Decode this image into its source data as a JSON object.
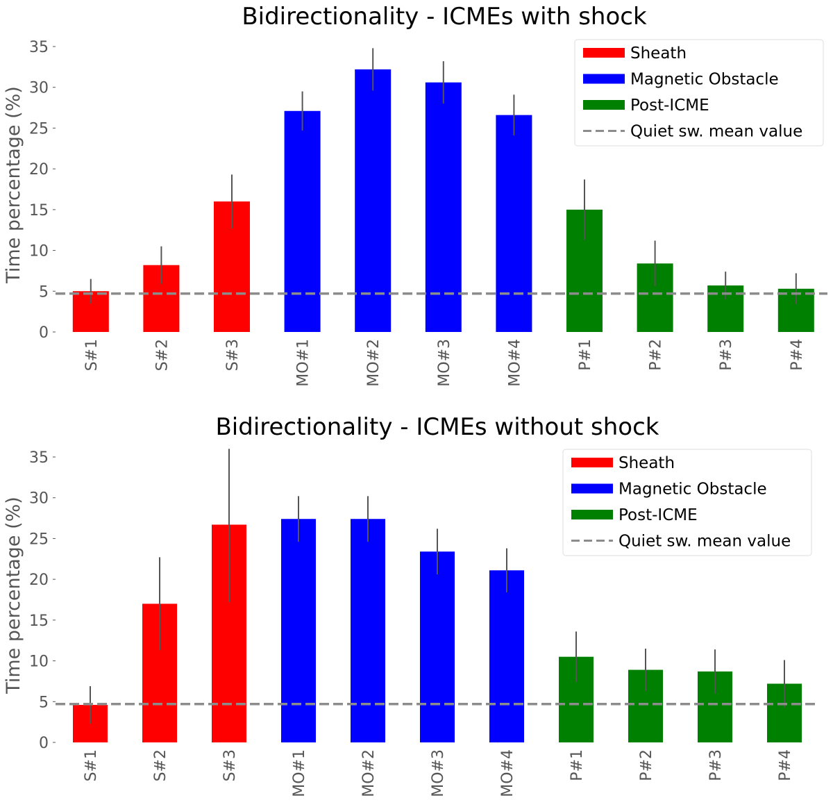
{
  "chart_data": [
    {
      "type": "bar",
      "title": "Bidirectionality - ICMEs with shock",
      "xlabel": "",
      "ylabel": "Time percentage (%)",
      "ylim": [
        0,
        35
      ],
      "yticks": [
        0,
        5,
        10,
        15,
        20,
        25,
        30,
        35
      ],
      "categories": [
        "S#1",
        "S#2",
        "S#3",
        "MO#1",
        "MO#2",
        "MO#3",
        "MO#4",
        "P#1",
        "P#2",
        "P#3",
        "P#4"
      ],
      "values": [
        5.0,
        8.2,
        16.0,
        27.1,
        32.2,
        30.6,
        26.6,
        15.0,
        8.4,
        5.7,
        5.3
      ],
      "errors": [
        1.5,
        2.3,
        3.3,
        2.4,
        2.6,
        2.6,
        2.5,
        3.7,
        2.8,
        1.7,
        1.9
      ],
      "groups": [
        "Sheath",
        "Sheath",
        "Sheath",
        "Magnetic Obstacle",
        "Magnetic Obstacle",
        "Magnetic Obstacle",
        "Magnetic Obstacle",
        "Post-ICME",
        "Post-ICME",
        "Post-ICME",
        "Post-ICME"
      ],
      "reference_line": {
        "name": "Quiet sw. mean value",
        "value": 4.7,
        "style": "dashed",
        "color": "#8c8c8c"
      },
      "legend": {
        "placement": "top-right",
        "entries": [
          "Sheath",
          "Magnetic Obstacle",
          "Post-ICME",
          "Quiet sw. mean value"
        ]
      },
      "grid": false
    },
    {
      "type": "bar",
      "title": "Bidirectionality - ICMEs without shock",
      "xlabel": "",
      "ylabel": "Time percentage (%)",
      "ylim": [
        0,
        35
      ],
      "yticks": [
        0,
        5,
        10,
        15,
        20,
        25,
        30,
        35
      ],
      "categories": [
        "S#1",
        "S#2",
        "S#3",
        "MO#1",
        "MO#2",
        "MO#3",
        "MO#4",
        "P#1",
        "P#2",
        "P#3",
        "P#4"
      ],
      "values": [
        4.6,
        17.0,
        26.7,
        27.4,
        27.4,
        23.4,
        21.1,
        10.5,
        8.9,
        8.7,
        7.2
      ],
      "errors": [
        2.3,
        5.7,
        9.5,
        2.8,
        2.8,
        2.8,
        2.7,
        3.1,
        2.6,
        2.7,
        2.9
      ],
      "groups": [
        "Sheath",
        "Sheath",
        "Sheath",
        "Magnetic Obstacle",
        "Magnetic Obstacle",
        "Magnetic Obstacle",
        "Magnetic Obstacle",
        "Post-ICME",
        "Post-ICME",
        "Post-ICME",
        "Post-ICME"
      ],
      "reference_line": {
        "name": "Quiet sw. mean value",
        "value": 4.7,
        "style": "dashed",
        "color": "#8c8c8c"
      },
      "legend": {
        "placement": "top-right",
        "entries": [
          "Sheath",
          "Magnetic Obstacle",
          "Post-ICME",
          "Quiet sw. mean value"
        ]
      },
      "grid": false
    }
  ],
  "colors": {
    "Sheath": "#ff0000",
    "Magnetic Obstacle": "#0000ff",
    "Post-ICME": "#008000",
    "error_bar": "#555555",
    "reference_line": "#8c8c8c",
    "legend_border": "#dddddd"
  }
}
